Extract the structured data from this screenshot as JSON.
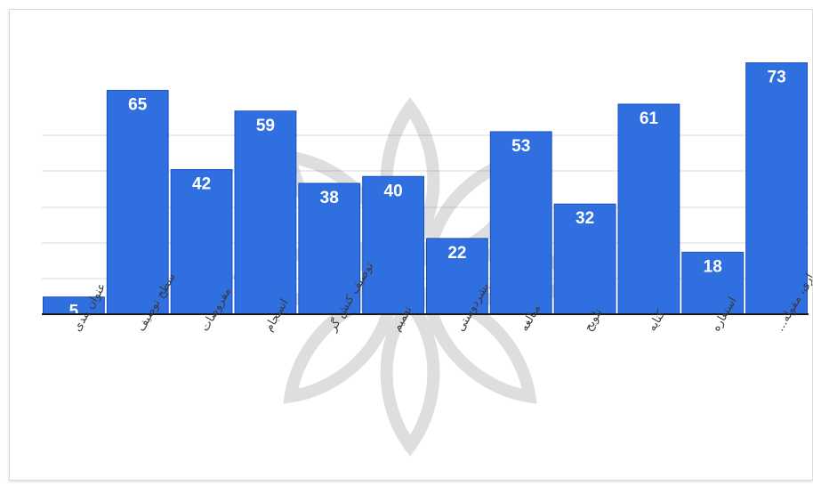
{
  "chart_data": {
    "type": "bar",
    "categories": [
      "عنوان بندی",
      "سطح توصیف",
      "مفروضات",
      "انسجام",
      "توصیف کنش گر",
      "تعمیم",
      "بشردوستی",
      "مبالغه",
      "تلویح",
      "کنایه",
      "استعاره",
      "قطبی سازی، مقوله..."
    ],
    "values": [
      5,
      65,
      42,
      59,
      38,
      40,
      22,
      53,
      32,
      61,
      18,
      73
    ],
    "ylim": [
      0,
      76
    ],
    "grid": true,
    "bar_color": "#2f6fe0",
    "bar_edge_color": "#1a4fc4",
    "axis_color": "#1a1a1a",
    "grid_color": "#d8d8d8"
  }
}
